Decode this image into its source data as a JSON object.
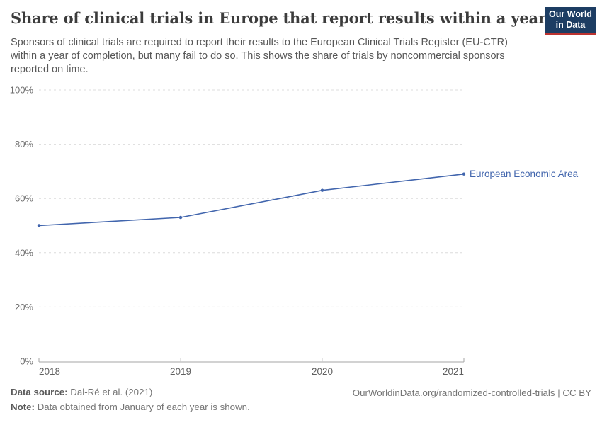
{
  "header": {
    "title": "Share of clinical trials in Europe that report results within a year",
    "subtitle": "Sponsors of clinical trials are required to report their results to the European Clinical Trials Register (EU-CTR) within a year of completion, but many fail to do so. This shows the share of trials by noncommercial sponsors reported on time.",
    "logo": {
      "line1": "Our World",
      "line2": "in Data",
      "bg_color": "#1d3d63",
      "accent_color": "#bc3330"
    }
  },
  "chart_data": {
    "type": "line",
    "title": "Share of clinical trials in Europe that report results within a year",
    "x": [
      2018,
      2019,
      2020,
      2021
    ],
    "series": [
      {
        "name": "European Economic Area",
        "values": [
          50,
          53,
          63,
          69
        ],
        "color": "#4165ad"
      }
    ],
    "xlabel": "",
    "ylabel": "",
    "ylim": [
      0,
      100
    ],
    "yticks": [
      0,
      20,
      40,
      60,
      80,
      100
    ],
    "ytick_suffix": "%",
    "grid": "horizontal-dashed",
    "legend": "end-of-line-label",
    "colors": {
      "gridline": "#dcdcdc",
      "axis": "#a5a5a5",
      "inner_tick": "#c8c8c8",
      "tick_label": "#6e6e6e",
      "x_label": "#5f5f5f"
    }
  },
  "footer": {
    "data_source_label": "Data source:",
    "data_source_value": "Dal-Ré et al. (2021)",
    "note_label": "Note:",
    "note_value": "Data obtained from January of each year is shown.",
    "attribution": "OurWorldinData.org/randomized-controlled-trials | CC BY"
  }
}
